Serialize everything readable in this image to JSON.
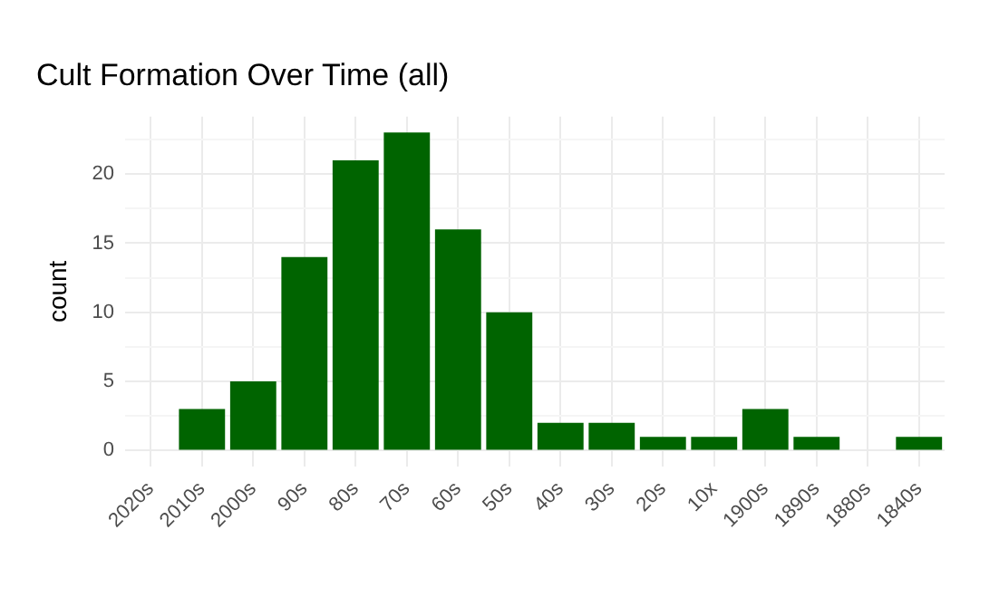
{
  "chart_data": {
    "type": "bar",
    "title": "Cult Formation Over Time (all)",
    "ylabel": "count",
    "categories": [
      "2020s",
      "2010s",
      "2000s",
      "90s",
      "80s",
      "70s",
      "60s",
      "50s",
      "40s",
      "30s",
      "20s",
      "10x",
      "1900s",
      "1890s",
      "1880s",
      "1840s"
    ],
    "values": [
      0,
      3,
      5,
      14,
      21,
      23,
      16,
      10,
      2,
      2,
      1,
      1,
      3,
      1,
      0,
      1
    ],
    "color": "#006400",
    "ylim": [
      -1.15,
      24.15
    ],
    "yticks": [
      0,
      {
        "value": 2.5,
        "label": null
      },
      5,
      {
        "value": 7.5,
        "label": null
      },
      10,
      {
        "value": 12.5,
        "label": null
      },
      15,
      {
        "value": 17.5,
        "label": null
      },
      20,
      {
        "value": 22.5,
        "label": null
      }
    ],
    "grid": true
  }
}
